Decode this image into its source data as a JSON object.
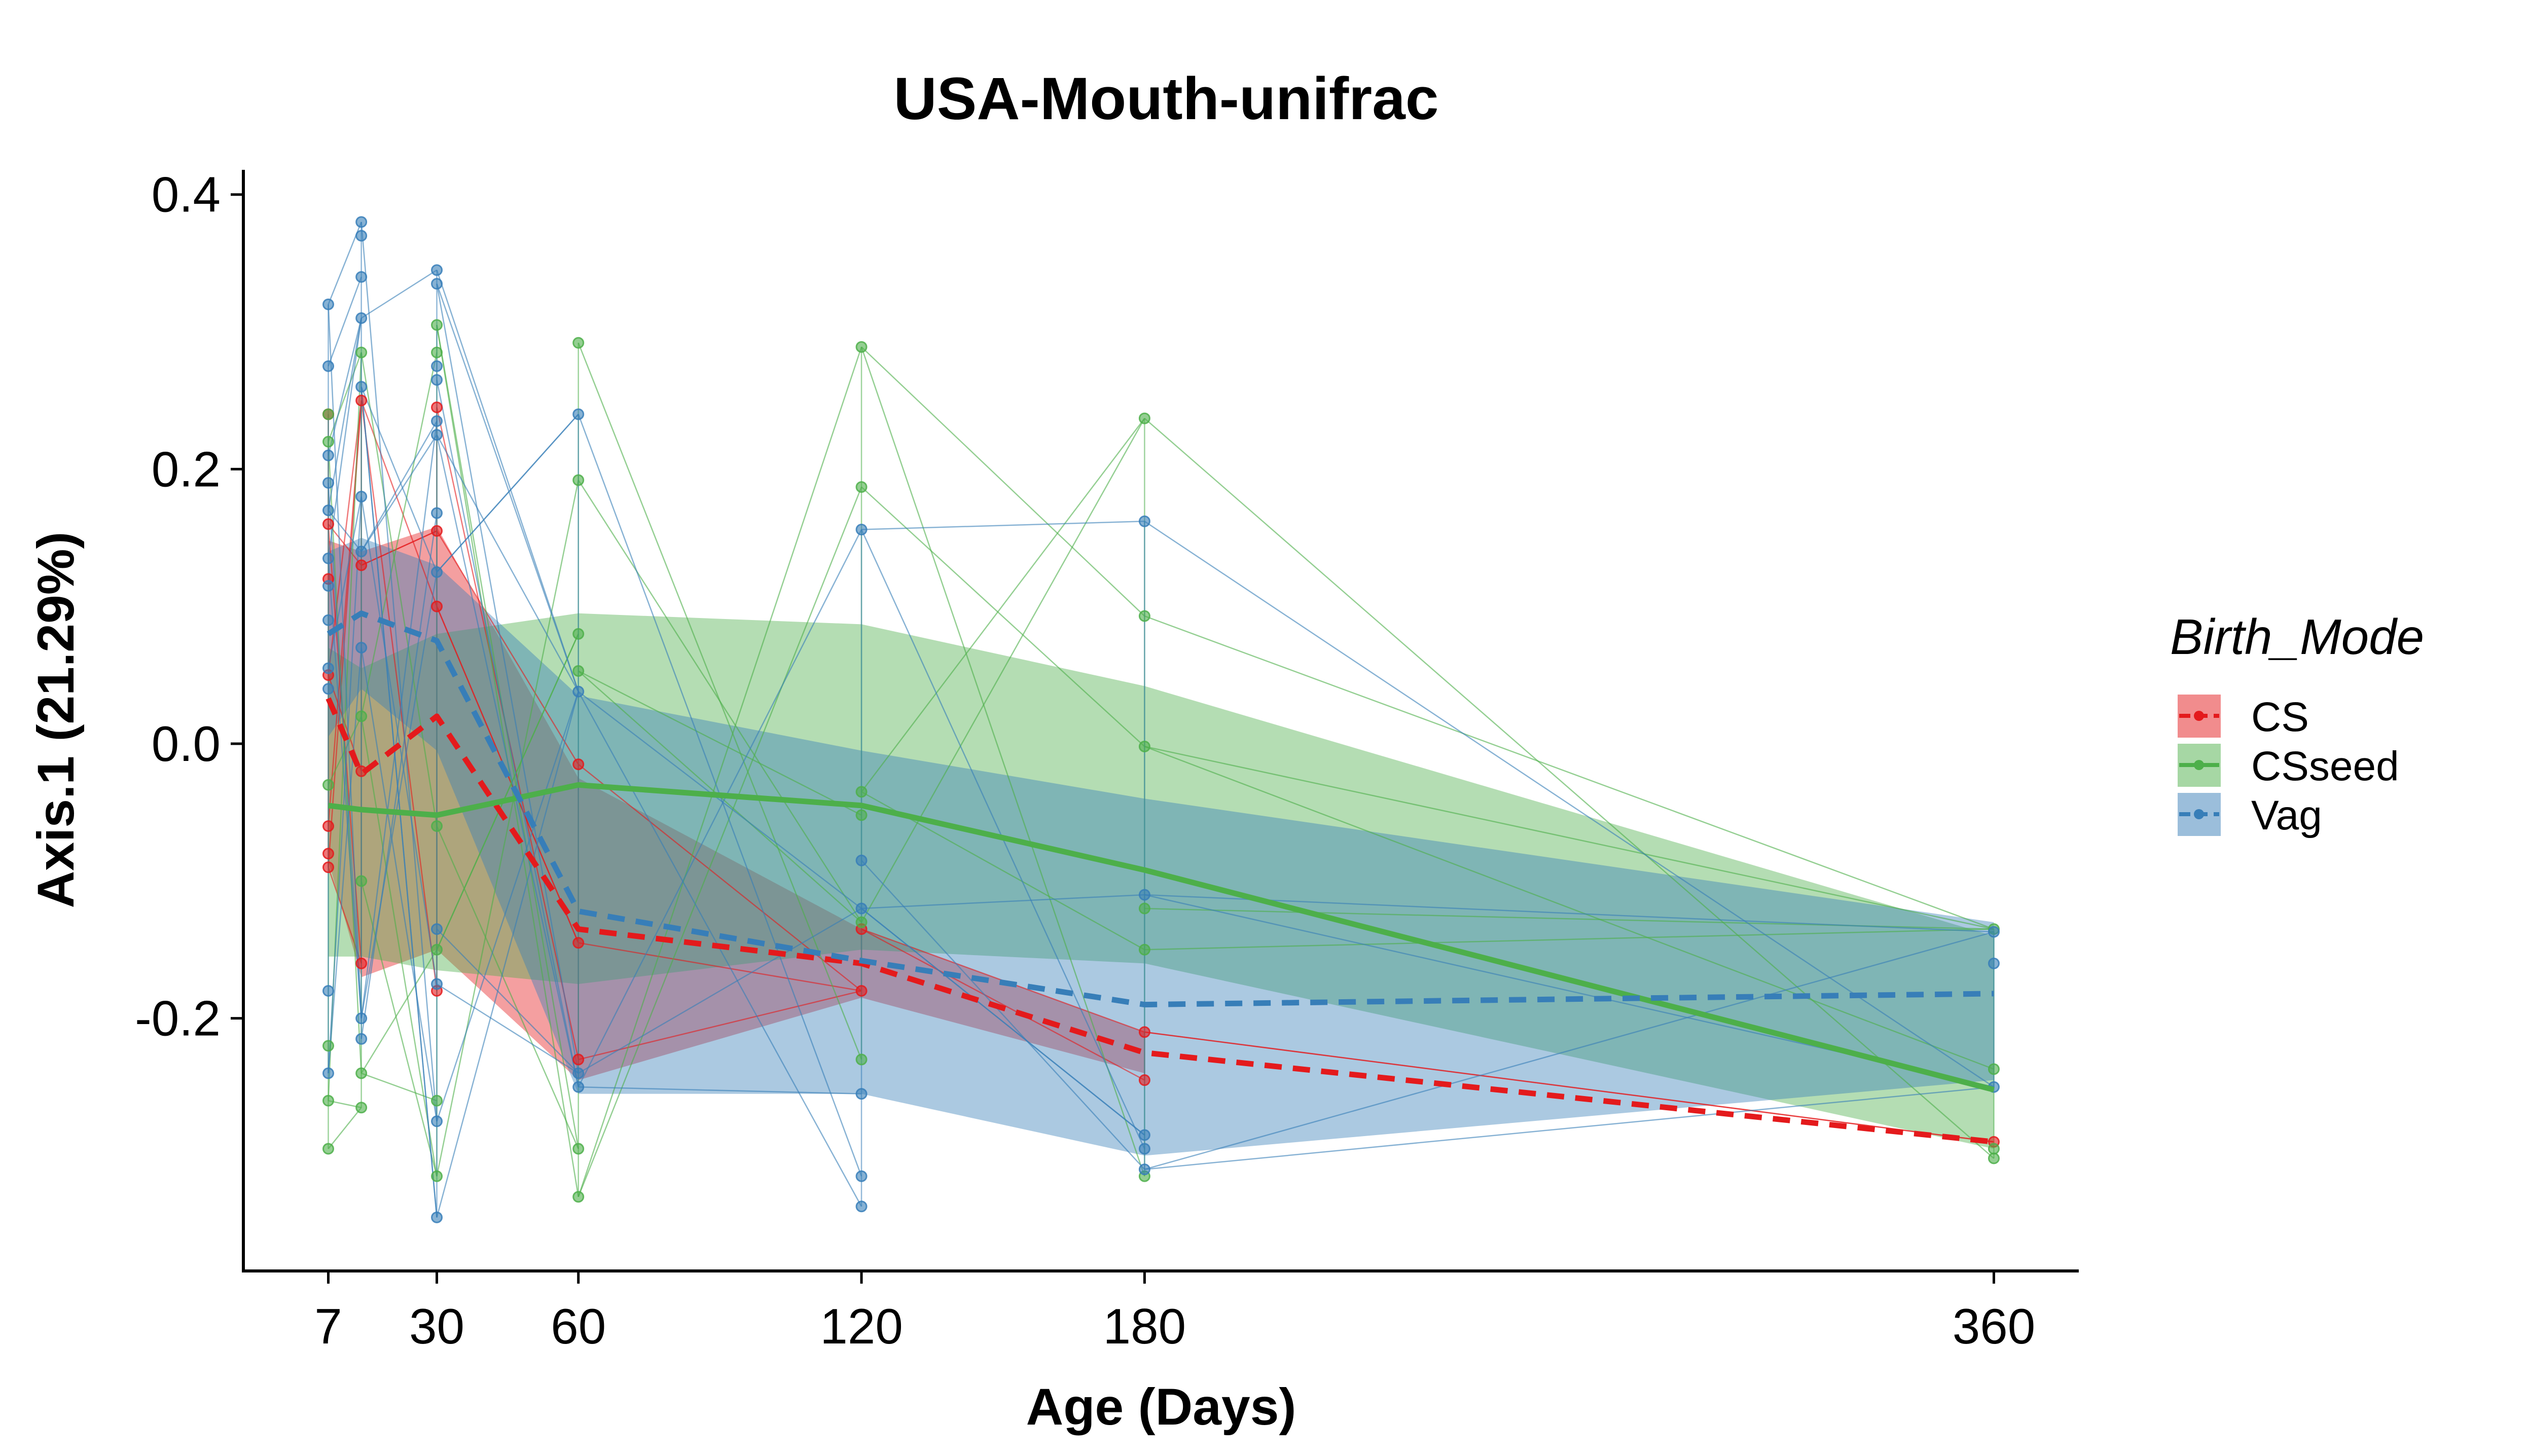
{
  "chart_data": {
    "type": "line",
    "title": "USA-Mouth-unifrac",
    "xlabel": "Age (Days)",
    "ylabel": "Axis.1 (21.29%)",
    "x_ticks": [
      7,
      30,
      60,
      120,
      180,
      360
    ],
    "x_tick_labels": [
      "7",
      "30",
      "60",
      "120",
      "180",
      "360"
    ],
    "y_ticks": [
      -0.2,
      0.0,
      0.2,
      0.4
    ],
    "y_tick_labels": [
      "-0.2",
      "0.0",
      "0.2",
      "0.4"
    ],
    "xlim": [
      -11,
      378
    ],
    "ylim": [
      -0.384,
      0.418
    ],
    "grid": false,
    "legend": {
      "title": "Birth_Mode",
      "position": "right"
    },
    "series": [
      {
        "name": "CS",
        "color": "#E41A1C",
        "line_style": "dashed",
        "mean": [
          {
            "x": 7,
            "y": 0.033
          },
          {
            "x": 14,
            "y": -0.022
          },
          {
            "x": 30,
            "y": 0.02
          },
          {
            "x": 60,
            "y": -0.135
          },
          {
            "x": 120,
            "y": -0.16
          },
          {
            "x": 180,
            "y": -0.225
          },
          {
            "x": 360,
            "y": -0.29
          }
        ],
        "ribbon": [
          {
            "x": 7,
            "low": -0.085,
            "high": 0.148
          },
          {
            "x": 14,
            "low": -0.17,
            "high": 0.14
          },
          {
            "x": 30,
            "low": -0.15,
            "high": 0.158
          },
          {
            "x": 60,
            "low": -0.245,
            "high": -0.025
          },
          {
            "x": 120,
            "low": -0.185,
            "high": -0.135
          },
          {
            "x": 180,
            "low": -0.24,
            "high": -0.21
          }
        ],
        "points": [
          {
            "x": 7,
            "y": 0.16
          },
          {
            "x": 7,
            "y": 0.12
          },
          {
            "x": 7,
            "y": 0.05
          },
          {
            "x": 7,
            "y": 0.24
          },
          {
            "x": 7,
            "y": -0.06
          },
          {
            "x": 7,
            "y": -0.08
          },
          {
            "x": 7,
            "y": -0.09
          },
          {
            "x": 14,
            "y": 0.25
          },
          {
            "x": 14,
            "y": 0.13
          },
          {
            "x": 14,
            "y": -0.02
          },
          {
            "x": 14,
            "y": -0.16
          },
          {
            "x": 30,
            "y": 0.245
          },
          {
            "x": 30,
            "y": 0.155
          },
          {
            "x": 30,
            "y": 0.1
          },
          {
            "x": 30,
            "y": -0.18
          },
          {
            "x": 60,
            "y": -0.015
          },
          {
            "x": 60,
            "y": -0.145
          },
          {
            "x": 60,
            "y": -0.23
          },
          {
            "x": 120,
            "y": -0.18
          },
          {
            "x": 120,
            "y": -0.135
          },
          {
            "x": 180,
            "y": -0.21
          },
          {
            "x": 180,
            "y": -0.245
          },
          {
            "x": 360,
            "y": -0.29
          }
        ]
      },
      {
        "name": "CSseed",
        "color": "#4DAF4A",
        "line_style": "solid",
        "mean": [
          {
            "x": 7,
            "y": -0.045
          },
          {
            "x": 14,
            "y": -0.048
          },
          {
            "x": 30,
            "y": -0.052
          },
          {
            "x": 60,
            "y": -0.03
          },
          {
            "x": 120,
            "y": -0.045
          },
          {
            "x": 180,
            "y": -0.092
          },
          {
            "x": 360,
            "y": -0.252
          }
        ],
        "ribbon": [
          {
            "x": 7,
            "low": -0.155,
            "high": 0.07
          },
          {
            "x": 14,
            "low": -0.155,
            "high": 0.055
          },
          {
            "x": 30,
            "low": -0.165,
            "high": 0.08
          },
          {
            "x": 60,
            "low": -0.175,
            "high": 0.095
          },
          {
            "x": 120,
            "low": -0.15,
            "high": 0.087
          },
          {
            "x": 180,
            "low": -0.16,
            "high": 0.042
          },
          {
            "x": 360,
            "low": -0.295,
            "high": -0.14
          }
        ],
        "points": [
          {
            "x": 7,
            "y": 0.24
          },
          {
            "x": 7,
            "y": 0.22
          },
          {
            "x": 7,
            "y": -0.03
          },
          {
            "x": 7,
            "y": -0.22
          },
          {
            "x": 7,
            "y": -0.26
          },
          {
            "x": 7,
            "y": -0.295
          },
          {
            "x": 14,
            "y": 0.285
          },
          {
            "x": 14,
            "y": 0.02
          },
          {
            "x": 14,
            "y": -0.1
          },
          {
            "x": 14,
            "y": -0.24
          },
          {
            "x": 14,
            "y": -0.265
          },
          {
            "x": 30,
            "y": 0.305
          },
          {
            "x": 30,
            "y": 0.285
          },
          {
            "x": 30,
            "y": -0.06
          },
          {
            "x": 30,
            "y": -0.15
          },
          {
            "x": 30,
            "y": -0.26
          },
          {
            "x": 30,
            "y": -0.315
          },
          {
            "x": 60,
            "y": 0.292
          },
          {
            "x": 60,
            "y": 0.192
          },
          {
            "x": 60,
            "y": 0.08
          },
          {
            "x": 60,
            "y": 0.053
          },
          {
            "x": 60,
            "y": -0.295
          },
          {
            "x": 60,
            "y": -0.33
          },
          {
            "x": 120,
            "y": 0.289
          },
          {
            "x": 120,
            "y": 0.187
          },
          {
            "x": 120,
            "y": -0.035
          },
          {
            "x": 120,
            "y": -0.052
          },
          {
            "x": 120,
            "y": -0.13
          },
          {
            "x": 120,
            "y": -0.23
          },
          {
            "x": 180,
            "y": 0.237
          },
          {
            "x": 180,
            "y": 0.093
          },
          {
            "x": 180,
            "y": -0.002
          },
          {
            "x": 180,
            "y": -0.12
          },
          {
            "x": 180,
            "y": -0.15
          },
          {
            "x": 180,
            "y": -0.315
          },
          {
            "x": 360,
            "y": -0.135
          },
          {
            "x": 360,
            "y": -0.237
          },
          {
            "x": 360,
            "y": -0.295
          },
          {
            "x": 360,
            "y": -0.302
          }
        ]
      },
      {
        "name": "Vag",
        "color": "#377EB8",
        "line_style": "dashed",
        "mean": [
          {
            "x": 7,
            "y": 0.08
          },
          {
            "x": 14,
            "y": 0.095
          },
          {
            "x": 30,
            "y": 0.075
          },
          {
            "x": 60,
            "y": -0.122
          },
          {
            "x": 120,
            "y": -0.158
          },
          {
            "x": 180,
            "y": -0.19
          },
          {
            "x": 360,
            "y": -0.182
          }
        ],
        "ribbon": [
          {
            "x": 7,
            "low": 0.005,
            "high": 0.14
          },
          {
            "x": 14,
            "low": 0.04,
            "high": 0.15
          },
          {
            "x": 30,
            "low": -0.005,
            "high": 0.13
          },
          {
            "x": 60,
            "low": -0.255,
            "high": 0.035
          },
          {
            "x": 120,
            "low": -0.255,
            "high": -0.005
          },
          {
            "x": 180,
            "low": -0.3,
            "high": -0.04
          },
          {
            "x": 360,
            "low": -0.245,
            "high": -0.13
          }
        ],
        "points": [
          {
            "x": 7,
            "y": 0.32
          },
          {
            "x": 7,
            "y": 0.275
          },
          {
            "x": 7,
            "y": 0.21
          },
          {
            "x": 7,
            "y": 0.19
          },
          {
            "x": 7,
            "y": 0.17
          },
          {
            "x": 7,
            "y": 0.135
          },
          {
            "x": 7,
            "y": 0.115
          },
          {
            "x": 7,
            "y": 0.09
          },
          {
            "x": 7,
            "y": 0.055
          },
          {
            "x": 7,
            "y": 0.04
          },
          {
            "x": 7,
            "y": -0.18
          },
          {
            "x": 7,
            "y": -0.24
          },
          {
            "x": 14,
            "y": 0.38
          },
          {
            "x": 14,
            "y": 0.37
          },
          {
            "x": 14,
            "y": 0.34
          },
          {
            "x": 14,
            "y": 0.31
          },
          {
            "x": 14,
            "y": 0.26
          },
          {
            "x": 14,
            "y": 0.18
          },
          {
            "x": 14,
            "y": 0.14
          },
          {
            "x": 14,
            "y": 0.07
          },
          {
            "x": 14,
            "y": -0.2
          },
          {
            "x": 14,
            "y": -0.215
          },
          {
            "x": 30,
            "y": 0.345
          },
          {
            "x": 30,
            "y": 0.335
          },
          {
            "x": 30,
            "y": 0.275
          },
          {
            "x": 30,
            "y": 0.265
          },
          {
            "x": 30,
            "y": 0.235
          },
          {
            "x": 30,
            "y": 0.225
          },
          {
            "x": 30,
            "y": 0.168
          },
          {
            "x": 30,
            "y": 0.125
          },
          {
            "x": 30,
            "y": -0.135
          },
          {
            "x": 30,
            "y": -0.175
          },
          {
            "x": 30,
            "y": -0.275
          },
          {
            "x": 30,
            "y": -0.345
          },
          {
            "x": 60,
            "y": 0.24
          },
          {
            "x": 60,
            "y": 0.038
          },
          {
            "x": 60,
            "y": -0.24
          },
          {
            "x": 60,
            "y": -0.25
          },
          {
            "x": 120,
            "y": 0.156
          },
          {
            "x": 120,
            "y": -0.085
          },
          {
            "x": 120,
            "y": -0.12
          },
          {
            "x": 120,
            "y": -0.255
          },
          {
            "x": 120,
            "y": -0.315
          },
          {
            "x": 120,
            "y": -0.337
          },
          {
            "x": 180,
            "y": 0.162
          },
          {
            "x": 180,
            "y": -0.11
          },
          {
            "x": 180,
            "y": -0.285
          },
          {
            "x": 180,
            "y": -0.295
          },
          {
            "x": 180,
            "y": -0.31
          },
          {
            "x": 360,
            "y": -0.137
          },
          {
            "x": 360,
            "y": -0.16
          },
          {
            "x": 360,
            "y": -0.25
          }
        ]
      }
    ]
  }
}
